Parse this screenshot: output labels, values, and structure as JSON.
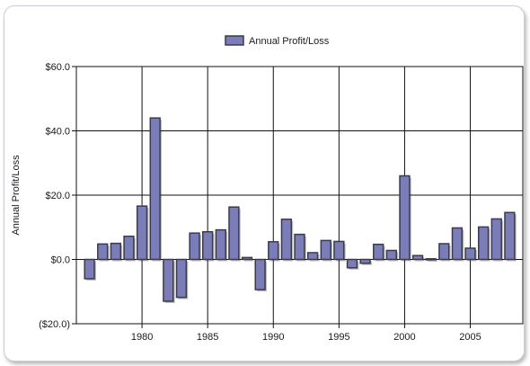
{
  "chart_data": {
    "type": "bar",
    "legend": {
      "label": "Annual Profit/Loss",
      "placement": "top-center"
    },
    "ylabel": "Annual Profit/Loss",
    "xlabel": "",
    "ylim": [
      -20,
      60
    ],
    "xlim": [
      1975,
      2009
    ],
    "y_ticks": [
      {
        "value": 60,
        "label": "$60.0"
      },
      {
        "value": 40,
        "label": "$40.0"
      },
      {
        "value": 20,
        "label": "$20.0"
      },
      {
        "value": 0,
        "label": "$0.0"
      },
      {
        "value": -20,
        "label": "($20.0)"
      }
    ],
    "x_ticks": [
      {
        "value": 1980,
        "label": "1980"
      },
      {
        "value": 1985,
        "label": "1985"
      },
      {
        "value": 1990,
        "label": "1990"
      },
      {
        "value": 1995,
        "label": "1995"
      },
      {
        "value": 2000,
        "label": "2000"
      },
      {
        "value": 2005,
        "label": "2005"
      }
    ],
    "grid": true,
    "series": [
      {
        "name": "Annual Profit/Loss",
        "color": "#7b7db8",
        "x": [
          1976,
          1977,
          1978,
          1979,
          1980,
          1981,
          1982,
          1983,
          1984,
          1985,
          1986,
          1987,
          1988,
          1989,
          1990,
          1991,
          1992,
          1993,
          1994,
          1995,
          1996,
          1997,
          1998,
          1999,
          2000,
          2001,
          2002,
          2003,
          2004,
          2005,
          2006,
          2007,
          2008
        ],
        "values": [
          -6,
          4.8,
          5,
          7.2,
          16.6,
          44,
          -13,
          -11.8,
          8.2,
          8.6,
          9.2,
          16.3,
          0.6,
          -9.4,
          5.5,
          12.5,
          7.8,
          2.1,
          5.9,
          5.6,
          -2.6,
          -1.2,
          4.7,
          2.8,
          26,
          1.2,
          0.2,
          4.9,
          9.8,
          3.5,
          10.1,
          12.6,
          14.6
        ]
      }
    ]
  }
}
